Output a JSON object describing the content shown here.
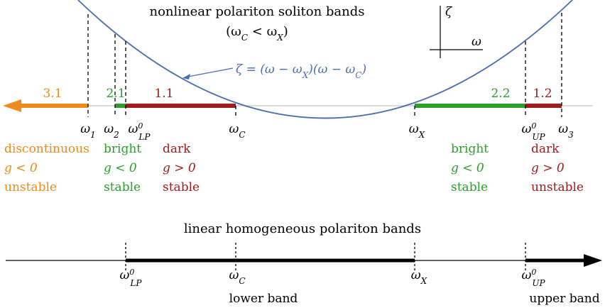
{
  "colors": {
    "orange": "#f08a1c",
    "green": "#2aa02a",
    "darkred": "#a31c1c",
    "blue": "#4a6fb0",
    "black": "#000000",
    "axisgray": "#c8c8c8"
  },
  "top_title": {
    "line1": "nonlinear polariton soliton bands",
    "line2_lhs": "(ω",
    "line2_sub1": "C",
    "line2_mid": " < ω",
    "line2_sub2": "X",
    "line2_end": ")"
  },
  "axes_inset": {
    "y_label": "ζ",
    "x_label": "ω"
  },
  "equation": {
    "p1": "ζ = (ω − ω",
    "s1": "X",
    "p2": ")(ω − ω",
    "s2": "C",
    "p3": ")"
  },
  "band_labels": {
    "b31": "3.1",
    "b21": "2.1",
    "b11": "1.1",
    "b22": "2.2",
    "b12": "1.2"
  },
  "top_ticks": {
    "w1": {
      "base": "ω",
      "sub": "1",
      "sup": ""
    },
    "w2": {
      "base": "ω",
      "sub": "2",
      "sup": ""
    },
    "wlp": {
      "base": "ω",
      "sub": "LP",
      "sup": "0"
    },
    "wc": {
      "base": "ω",
      "sub": "C",
      "sup": ""
    },
    "wx": {
      "base": "ω",
      "sub": "X",
      "sup": ""
    },
    "wup": {
      "base": "ω",
      "sub": "UP",
      "sup": "0"
    },
    "w3": {
      "base": "ω",
      "sub": "3",
      "sup": ""
    }
  },
  "descriptions": {
    "orange": {
      "l1": "discontinuous",
      "l2": "g < 0",
      "l3": "unstable"
    },
    "green_left": {
      "l1": "bright",
      "l2": "g < 0",
      "l3": "stable"
    },
    "red_left": {
      "l1": "dark",
      "l2": "g > 0",
      "l3": "stable"
    },
    "green_right": {
      "l1": "bright",
      "l2": "g < 0",
      "l3": "stable"
    },
    "red_right": {
      "l1": "dark",
      "l2": "g > 0",
      "l3": "unstable"
    }
  },
  "bottom_title": "linear homogeneous polariton bands",
  "bottom_ticks": {
    "wlp": {
      "base": "ω",
      "sub": "LP",
      "sup": "0"
    },
    "wc": {
      "base": "ω",
      "sub": "C",
      "sup": ""
    },
    "wx": {
      "base": "ω",
      "sub": "X",
      "sup": ""
    },
    "wup": {
      "base": "ω",
      "sub": "UP",
      "sup": "0"
    }
  },
  "bottom_labels": {
    "lower": "lower band",
    "upper": "upper band"
  }
}
